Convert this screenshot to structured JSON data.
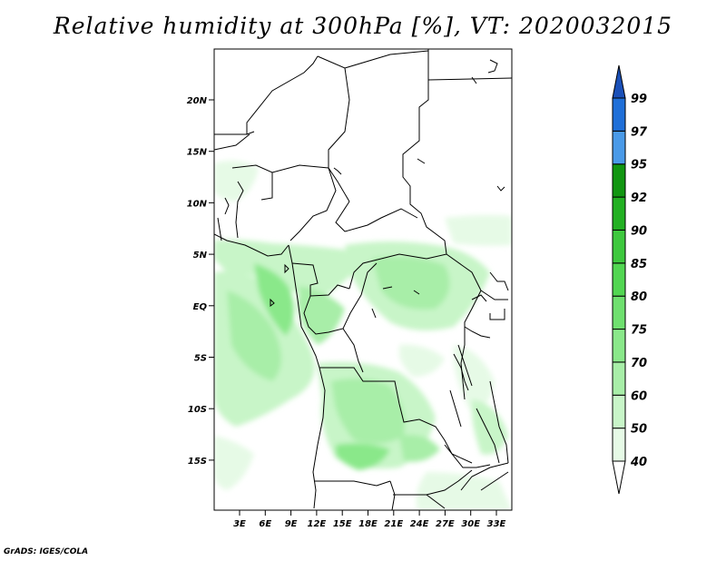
{
  "title": "Relative humidity at 300hPa [%], VT: 2020032015",
  "credit": "GrADS: IGES/COLA",
  "map": {
    "lat_ticks": [
      "20N",
      "15N",
      "10N",
      "5N",
      "EQ",
      "5S",
      "10S",
      "15S"
    ],
    "lon_ticks": [
      "3E",
      "6E",
      "9E",
      "12E",
      "15E",
      "18E",
      "21E",
      "24E",
      "27E",
      "30E",
      "33E"
    ]
  },
  "colorbar": {
    "levels": [
      "40",
      "50",
      "60",
      "70",
      "75",
      "80",
      "85",
      "90",
      "92",
      "95",
      "97",
      "99"
    ],
    "colors": [
      "#ffffff",
      "#e6fae6",
      "#c8f5c8",
      "#a8eea8",
      "#8ae88a",
      "#6fe06f",
      "#52d652",
      "#3ec83e",
      "#22b022",
      "#119611",
      "#4a9ae8",
      "#1f6fd8",
      "#1a50b8"
    ]
  }
}
